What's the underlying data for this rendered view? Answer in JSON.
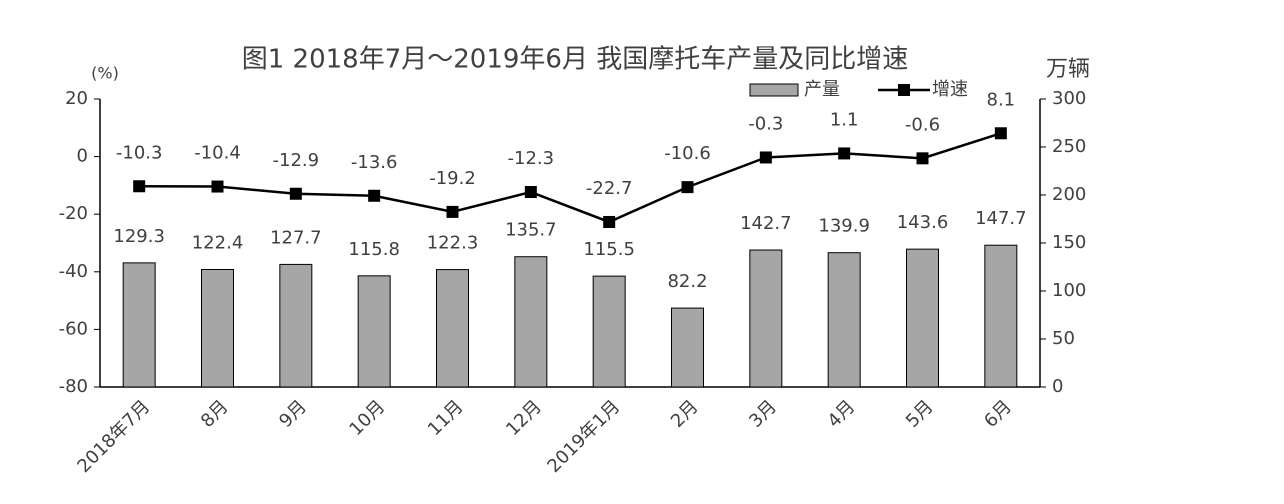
{
  "chart_data": {
    "type": "bar",
    "title": "图1  2018年7月～2019年6月 我国摩托车产量及同比增速",
    "y_label": "(%)",
    "y2_label": "万辆",
    "categories": [
      "2018年7月",
      "8月",
      "9月",
      "10月",
      "11月",
      "12月",
      "2019年1月",
      "2月",
      "3月",
      "4月",
      "5月",
      "6月"
    ],
    "series": [
      {
        "name": "产量",
        "type": "bar",
        "axis": "y2",
        "color": "#a6a6a6",
        "values": [
          129.3,
          122.4,
          127.7,
          115.8,
          122.3,
          135.7,
          115.5,
          82.2,
          142.7,
          139.9,
          143.6,
          147.7
        ]
      },
      {
        "name": "增速",
        "type": "line",
        "axis": "y",
        "color": "#000000",
        "values": [
          -10.3,
          -10.4,
          -12.9,
          -13.6,
          -19.2,
          -12.3,
          -22.7,
          -10.6,
          -0.3,
          1.1,
          -0.6,
          8.1
        ]
      }
    ],
    "ylim": [
      -80,
      20
    ],
    "yticks": [
      -80,
      -60,
      -40,
      -20,
      0,
      20
    ],
    "y2lim": [
      0,
      300
    ],
    "y2ticks": [
      0,
      50,
      100,
      150,
      200,
      250,
      300
    ],
    "grid": false,
    "legend": "top-right"
  }
}
